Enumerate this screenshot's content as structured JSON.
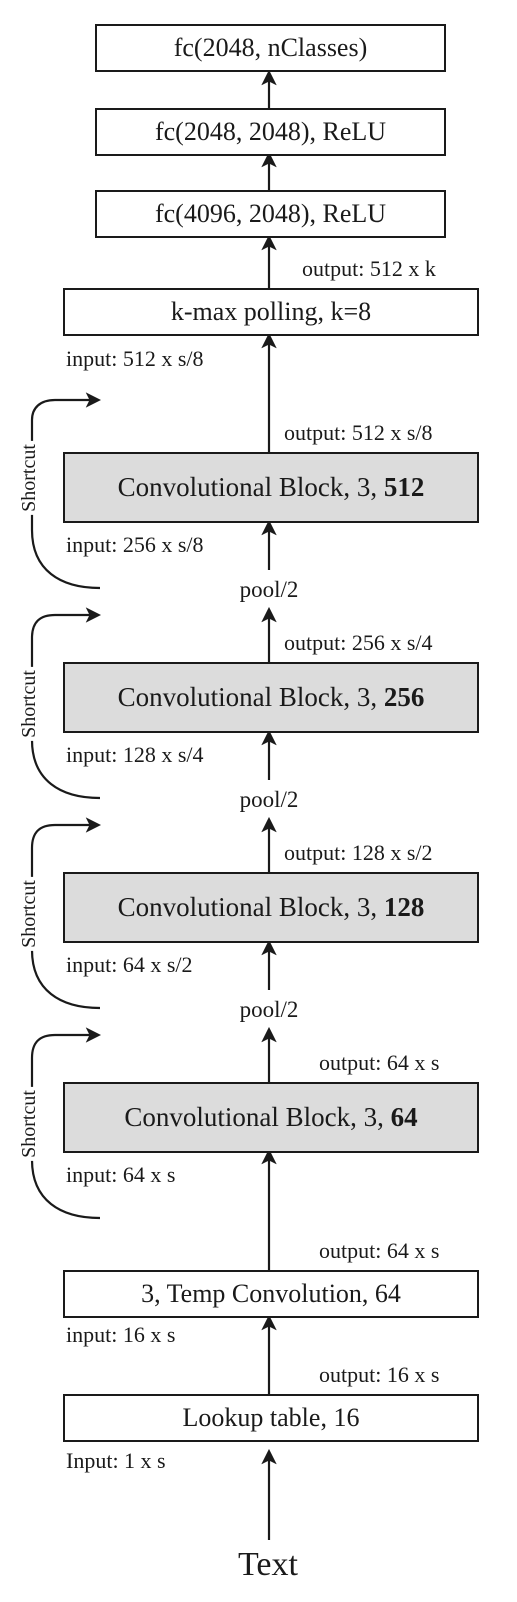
{
  "fc": [
    {
      "label": "fc(2048, nClasses)"
    },
    {
      "label": "fc(2048, 2048), ReLU"
    },
    {
      "label": "fc(4096, 2048), ReLU"
    }
  ],
  "kmax": {
    "label": "k-max polling, k=8",
    "output": "output: 512 x k",
    "input": "input: 512 x s/8"
  },
  "conv_blocks": [
    {
      "prefix": "Convolutional Block, 3, ",
      "filters": "512",
      "output": "output: 512 x s/8",
      "input": "input: 256 x s/8"
    },
    {
      "prefix": "Convolutional Block, 3, ",
      "filters": "256",
      "output": "output: 256 x s/4",
      "input": "input: 128 x s/4"
    },
    {
      "prefix": "Convolutional Block, 3, ",
      "filters": "128",
      "output": "output: 128 x s/2",
      "input": "input: 64 x s/2"
    },
    {
      "prefix": "Convolutional Block, 3, ",
      "filters": "64",
      "output": "output: 64 x s",
      "input": "input: 64 x s"
    }
  ],
  "pool_label": "pool/2",
  "shortcut_label": "Shortcut",
  "temp_conv": {
    "label": "3, Temp Convolution, 64",
    "output": "output: 64 x s",
    "input": "input: 16 x s"
  },
  "lookup": {
    "label": "Lookup table, 16",
    "output": "output: 16 x s",
    "input": "Input: 1 x s"
  },
  "text_label": "Text"
}
